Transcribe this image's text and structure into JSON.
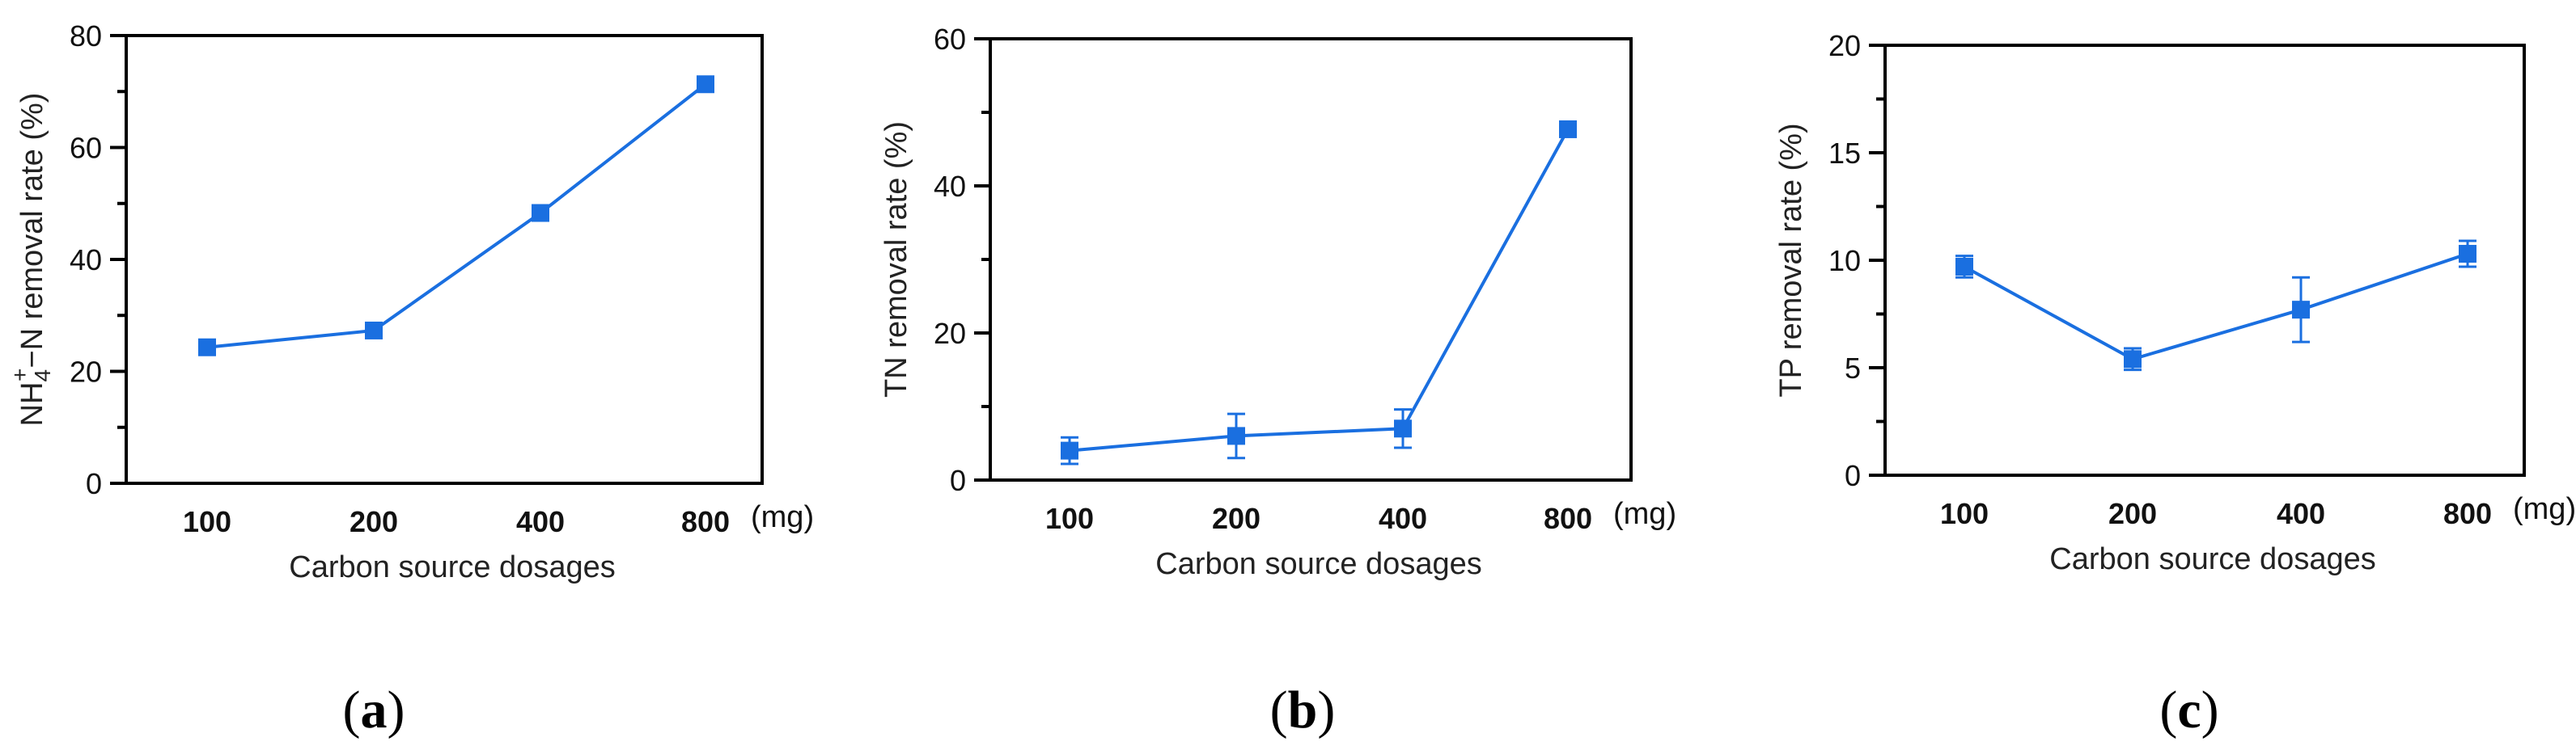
{
  "chart_data": [
    {
      "type": "line",
      "panel_label": "a",
      "categories": [
        "100",
        "200",
        "400",
        "800"
      ],
      "x_unit_label": "(mg)",
      "xlabel": "Carbon source dosages",
      "ylabel": {
        "prefix": "NH",
        "subscript": "4",
        "superscript": "+",
        "suffix": "−N removal rate (%)"
      },
      "ylim": [
        0,
        80
      ],
      "yticks": [
        0,
        20,
        40,
        60,
        80
      ],
      "series": [
        {
          "values": [
            24.3,
            27.3,
            48.3,
            71.3
          ],
          "errors": [
            0.8,
            0.8,
            0.8,
            0.8
          ],
          "color": "#1a6fe0",
          "marker": "square"
        }
      ]
    },
    {
      "type": "line",
      "panel_label": "b",
      "categories": [
        "100",
        "200",
        "400",
        "800"
      ],
      "x_unit_label": "(mg)",
      "xlabel": "Carbon source dosages",
      "ylabel": "TN removal rate (%)",
      "ylim": [
        0,
        60
      ],
      "yticks": [
        0,
        20,
        40,
        60
      ],
      "series": [
        {
          "values": [
            4.0,
            6.0,
            7.0,
            47.7
          ],
          "errors": [
            1.8,
            3.0,
            2.6,
            0.6
          ],
          "color": "#1a6fe0",
          "marker": "square"
        }
      ]
    },
    {
      "type": "line",
      "panel_label": "c",
      "categories": [
        "100",
        "200",
        "400",
        "800"
      ],
      "x_unit_label": "(mg)",
      "xlabel": "Carbon source dosages",
      "ylabel": "TP removal rate (%)",
      "ylim": [
        0,
        20
      ],
      "yticks": [
        0,
        5,
        10,
        15,
        20
      ],
      "series": [
        {
          "values": [
            9.7,
            5.4,
            7.7,
            10.3
          ],
          "errors": [
            0.5,
            0.5,
            1.5,
            0.6
          ],
          "color": "#1a6fe0",
          "marker": "square"
        }
      ]
    }
  ]
}
